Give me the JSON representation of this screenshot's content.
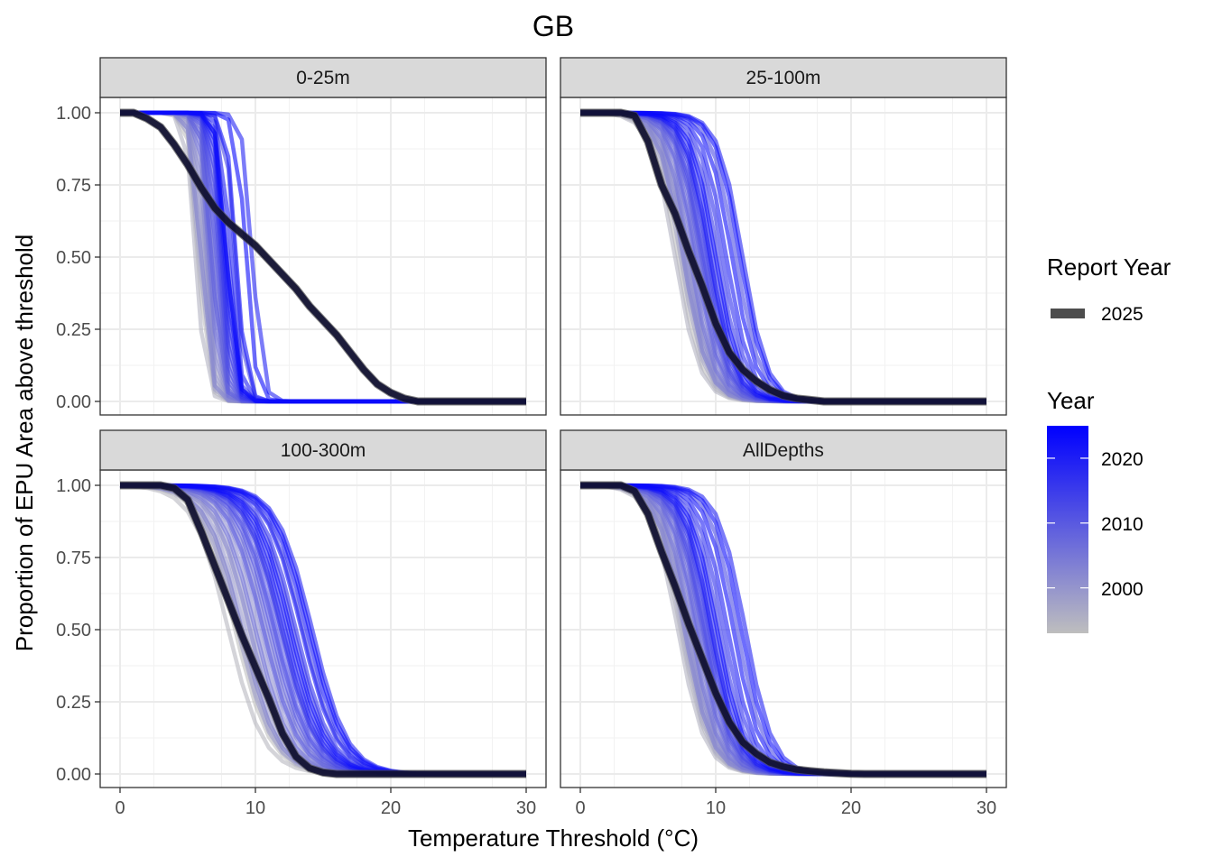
{
  "chart_data": {
    "type": "line",
    "title": "GB",
    "xlabel": "Temperature Threshold (°C)",
    "ylabel": "Proportion of EPU Area above threshold",
    "xlim": [
      0,
      30
    ],
    "ylim": [
      0,
      1
    ],
    "x_ticks": [
      "0",
      "10",
      "20",
      "30"
    ],
    "y_ticks": [
      "0.00",
      "0.25",
      "0.50",
      "0.75",
      "1.00"
    ],
    "grid": true,
    "legend": {
      "report_year_title": "Report Year",
      "report_year_label": "2025",
      "year_title": "Year",
      "year_ticks": [
        "2020",
        "2010",
        "2000"
      ],
      "year_range": [
        1993,
        2025
      ],
      "color_low": "#BEBEBE",
      "color_high": "#0000FF",
      "report_color": "#0A0A2E",
      "placement": "right"
    },
    "x": [
      0,
      1,
      2,
      3,
      4,
      5,
      6,
      7,
      8,
      9,
      10,
      11,
      12,
      13,
      14,
      15,
      16,
      17,
      18,
      19,
      20,
      21,
      22,
      23,
      24,
      25,
      26,
      27,
      28,
      29,
      30
    ],
    "historical_years": [
      1993,
      1994,
      1995,
      1996,
      1997,
      1998,
      1999,
      2000,
      2001,
      2002,
      2003,
      2004,
      2005,
      2006,
      2007,
      2008,
      2009,
      2010,
      2011,
      2012,
      2013,
      2014,
      2015,
      2016,
      2017,
      2018,
      2019,
      2020,
      2021,
      2022,
      2023,
      2024
    ],
    "historical_model": "logistic: y = 1/(1+exp((x-midpoint)/scale))",
    "panels": [
      {
        "label": "0-25m",
        "report_2025": [
          1,
          1,
          0.98,
          0.95,
          0.89,
          0.82,
          0.74,
          0.67,
          0.62,
          0.58,
          0.54,
          0.49,
          0.44,
          0.39,
          0.33,
          0.28,
          0.23,
          0.17,
          0.11,
          0.06,
          0.03,
          0.01,
          0,
          0,
          0,
          0,
          0,
          0,
          0,
          0,
          0
        ],
        "historical_scale": 0.35,
        "historical_midpoints": [
          5.8,
          6.0,
          5.6,
          6.3,
          6.1,
          5.9,
          6.5,
          6.2,
          6.8,
          6.4,
          6.0,
          6.7,
          7.0,
          6.6,
          6.9,
          7.2,
          6.8,
          7.4,
          7.1,
          8.5,
          7.3,
          7.6,
          7.9,
          7.5,
          8.0,
          7.7,
          9.8,
          8.2,
          7.8,
          8.6,
          9.3,
          7.9
        ]
      },
      {
        "label": "25-100m",
        "report_2025": [
          1,
          1,
          1,
          1,
          0.99,
          0.9,
          0.75,
          0.65,
          0.52,
          0.4,
          0.27,
          0.17,
          0.11,
          0.07,
          0.04,
          0.02,
          0.01,
          0.005,
          0,
          0,
          0,
          0,
          0,
          0,
          0,
          0,
          0,
          0,
          0,
          0,
          0
        ],
        "historical_scale": 0.9,
        "historical_midpoints": [
          7.2,
          7.5,
          7.0,
          7.8,
          7.4,
          7.6,
          8.0,
          7.7,
          8.2,
          7.9,
          7.6,
          8.4,
          8.6,
          8.1,
          8.8,
          9.0,
          8.5,
          9.2,
          8.9,
          11.5,
          9.1,
          9.5,
          10.2,
          9.4,
          10.5,
          9.8,
          12.0,
          10.8,
          9.6,
          11.2,
          11.8,
          10.0
        ]
      },
      {
        "label": "100-300m",
        "report_2025": [
          1,
          1,
          1,
          1,
          0.99,
          0.95,
          0.84,
          0.72,
          0.6,
          0.48,
          0.37,
          0.26,
          0.14,
          0.06,
          0.02,
          0.005,
          0,
          0,
          0,
          0,
          0,
          0,
          0,
          0,
          0,
          0,
          0,
          0,
          0,
          0,
          0
        ],
        "historical_scale": 1.3,
        "historical_midpoints": [
          8.5,
          8.0,
          9.0,
          8.8,
          9.5,
          8.7,
          9.8,
          9.2,
          10.2,
          9.6,
          9.0,
          10.5,
          10.8,
          10.0,
          11.0,
          11.4,
          10.6,
          11.8,
          11.2,
          13.5,
          11.5,
          12.0,
          12.8,
          11.9,
          13.0,
          12.4,
          14.2,
          13.4,
          12.2,
          13.8,
          14.0,
          12.6
        ]
      },
      {
        "label": "AllDepths",
        "report_2025": [
          1,
          1,
          1,
          1,
          0.98,
          0.9,
          0.77,
          0.65,
          0.52,
          0.4,
          0.28,
          0.18,
          0.11,
          0.07,
          0.04,
          0.025,
          0.015,
          0.01,
          0.006,
          0.003,
          0.001,
          0,
          0,
          0,
          0,
          0,
          0,
          0,
          0,
          0,
          0
        ],
        "historical_scale": 1.0,
        "historical_midpoints": [
          7.4,
          7.6,
          7.2,
          7.9,
          7.5,
          7.7,
          8.1,
          7.8,
          8.3,
          8.0,
          7.7,
          8.5,
          8.7,
          8.2,
          8.9,
          9.1,
          8.6,
          9.3,
          9.0,
          11.6,
          9.2,
          9.6,
          10.3,
          9.5,
          10.6,
          9.9,
          12.2,
          10.9,
          9.7,
          11.3,
          11.9,
          10.1
        ]
      }
    ]
  }
}
